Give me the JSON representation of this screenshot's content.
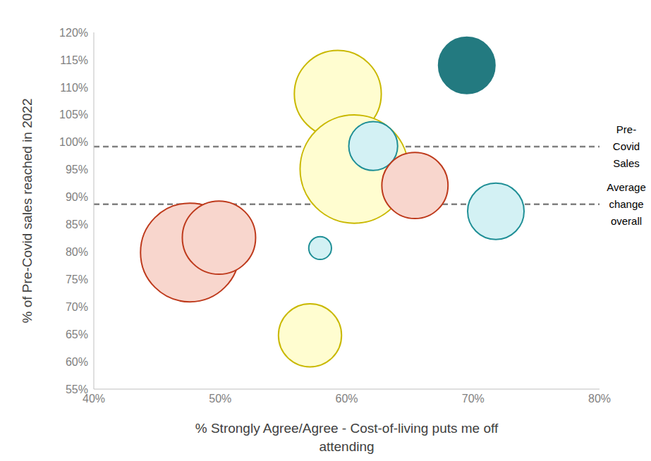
{
  "chart_data": {
    "type": "bubble",
    "x_label": [
      "% Strongly Agree/Agree - Cost-of-living puts me off",
      "attending"
    ],
    "y_label": "% of Pre-Covid sales reached in 2022",
    "x": [
      59.3,
      60.6,
      62.1,
      65.4,
      71.8,
      69.5,
      47.6,
      49.9,
      57.9,
      57.1
    ],
    "values": [
      108.8,
      95.1,
      99.3,
      92.1,
      87.4,
      114.0,
      79.9,
      82.6,
      80.7,
      64.8
    ],
    "sizes": [
      38,
      59,
      12,
      22,
      16,
      16,
      49,
      27,
      2.6,
      20
    ],
    "colors": [
      "#fffdd0",
      "#fffdd0",
      "#d3f1f4",
      "#f8d6cd",
      "#d3f1f4",
      "#237a80",
      "#f8d6cd",
      "#f8d6cd",
      "#d3f1f4",
      "#fffdd0"
    ],
    "xlim": [
      40,
      80
    ],
    "xticks": [
      {
        "value": 40,
        "label": "40%"
      },
      {
        "value": 50,
        "label": "50%"
      },
      {
        "value": 60,
        "label": "60%"
      },
      {
        "value": 70,
        "label": "70%"
      },
      {
        "value": 80,
        "label": "80%"
      }
    ],
    "ylim": [
      55,
      120
    ],
    "yticks": [
      {
        "value": 55,
        "label": "55%"
      },
      {
        "value": 60,
        "label": "60%"
      },
      {
        "value": 65,
        "label": "65%"
      },
      {
        "value": 70,
        "label": "70%"
      },
      {
        "value": 75,
        "label": "75%"
      },
      {
        "value": 80,
        "label": "80%"
      },
      {
        "value": 85,
        "label": "85%"
      },
      {
        "value": 90,
        "label": "90%"
      },
      {
        "value": 95,
        "label": "95%"
      },
      {
        "value": 100,
        "label": "100%"
      },
      {
        "value": 105,
        "label": "105%"
      },
      {
        "value": 110,
        "label": "110%"
      },
      {
        "value": 115,
        "label": "115%"
      },
      {
        "value": 120,
        "label": "120%"
      }
    ],
    "reference_lines": [
      {
        "y": 99.2,
        "label": [
          "Pre-",
          "Covid",
          "Sales"
        ],
        "line_style": "dashed"
      },
      {
        "y": 88.7,
        "label": [
          "Average",
          "change",
          "overall"
        ],
        "line_style": "dashed"
      }
    ],
    "grid": false
  }
}
